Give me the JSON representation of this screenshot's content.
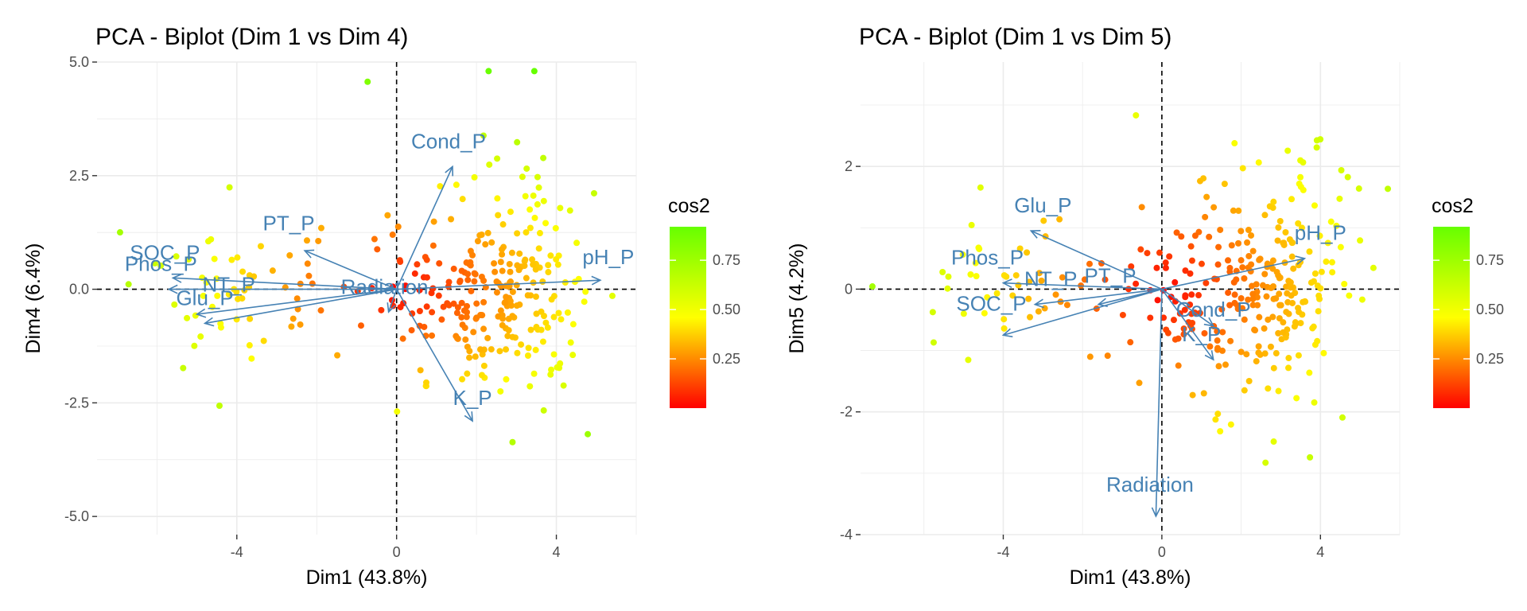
{
  "colors": {
    "arrow": "#4682B4",
    "grid": "#EBEBEB",
    "axis_text": "#4D4D4D",
    "gradient_low": "#FF0000",
    "gradient_mid": "#FFFF00",
    "gradient_high": "#66FF00"
  },
  "chart_data": [
    {
      "type": "scatter",
      "title": "PCA - Biplot (Dim 1 vs Dim 4)",
      "xlabel": "Dim1 (43.8%)",
      "ylabel": "Dim4 (6.4%)",
      "xlim": [
        -7.5,
        6.0
      ],
      "ylim": [
        -5.4,
        5.0
      ],
      "xticks": [
        -4,
        0,
        4
      ],
      "yticks": [
        -5.0,
        -2.5,
        0.0,
        2.5,
        5.0
      ],
      "ytick_labels": [
        "-5.0",
        "-2.5",
        "0.0",
        "2.5",
        "5.0"
      ],
      "grid": true,
      "legend": {
        "title": "cos2",
        "position": "right",
        "ticks": [
          0.25,
          0.5,
          0.75
        ],
        "tick_labels": [
          "0.25",
          "0.50",
          "0.75"
        ],
        "range": [
          0.0,
          0.92
        ]
      },
      "arrows": [
        {
          "label": "Cond_P",
          "x": 1.4,
          "y": 2.7,
          "lx": 1.3,
          "ly": 3.1
        },
        {
          "label": "PT_P",
          "x": -2.3,
          "y": 0.85,
          "lx": -2.7,
          "ly": 1.3
        },
        {
          "label": "SOC_P",
          "x": -5.6,
          "y": 0.25,
          "lx": -5.8,
          "ly": 0.65
        },
        {
          "label": "Phos_P",
          "x": -5.7,
          "y": 0.0,
          "lx": -5.9,
          "ly": 0.4
        },
        {
          "label": "NT_P",
          "x": -5.0,
          "y": -0.55,
          "lx": -4.2,
          "ly": -0.05
        },
        {
          "label": "Glu_P",
          "x": -4.8,
          "y": -0.75,
          "lx": -4.8,
          "ly": -0.35
        },
        {
          "label": "Radiation",
          "x": -0.2,
          "y": -0.5,
          "lx": -0.3,
          "ly": -0.1
        },
        {
          "label": "pH_P",
          "x": 5.1,
          "y": 0.2,
          "lx": 5.3,
          "ly": 0.55
        },
        {
          "label": "K_P",
          "x": 1.9,
          "y": -2.9,
          "lx": 1.9,
          "ly": -2.55
        }
      ],
      "points_seed": 11
    },
    {
      "type": "scatter",
      "title": "PCA - Biplot (Dim 1 vs Dim 5)",
      "xlabel": "Dim1 (43.8%)",
      "ylabel": "Dim5 (4.2%)",
      "xlim": [
        -7.6,
        6.0
      ],
      "ylim": [
        -4.0,
        3.7
      ],
      "xticks": [
        -4,
        0,
        4
      ],
      "yticks": [
        -4,
        -2,
        0,
        2
      ],
      "ytick_labels": [
        "-4",
        "-2",
        "0",
        "2"
      ],
      "grid": true,
      "legend": {
        "title": "cos2",
        "position": "right",
        "ticks": [
          0.25,
          0.5,
          0.75
        ],
        "tick_labels": [
          "0.25",
          "0.50",
          "0.75"
        ],
        "range": [
          0.0,
          0.92
        ]
      },
      "arrows": [
        {
          "label": "Glu_P",
          "x": -3.3,
          "y": 0.95,
          "lx": -3.0,
          "ly": 1.25
        },
        {
          "label": "pH_P",
          "x": 3.6,
          "y": 0.5,
          "lx": 4.0,
          "ly": 0.8
        },
        {
          "label": "Phos_P",
          "x": -4.0,
          "y": 0.1,
          "lx": -4.4,
          "ly": 0.4
        },
        {
          "label": "NT_P",
          "x": -3.2,
          "y": -0.25,
          "lx": -2.8,
          "ly": 0.05
        },
        {
          "label": "PT_P",
          "x": -1.6,
          "y": -0.25,
          "lx": -1.3,
          "ly": 0.1
        },
        {
          "label": "SOC_P",
          "x": -4.0,
          "y": -0.75,
          "lx": -4.3,
          "ly": -0.35
        },
        {
          "label": "Cond_P",
          "x": 1.3,
          "y": -0.6,
          "lx": 1.3,
          "ly": -0.45
        },
        {
          "label": "K_P",
          "x": 1.3,
          "y": -1.15,
          "lx": 1.0,
          "ly": -0.85
        },
        {
          "label": "Radiation",
          "x": -0.15,
          "y": -3.7,
          "lx": -0.3,
          "ly": -3.3
        }
      ],
      "points_seed": 23
    }
  ]
}
